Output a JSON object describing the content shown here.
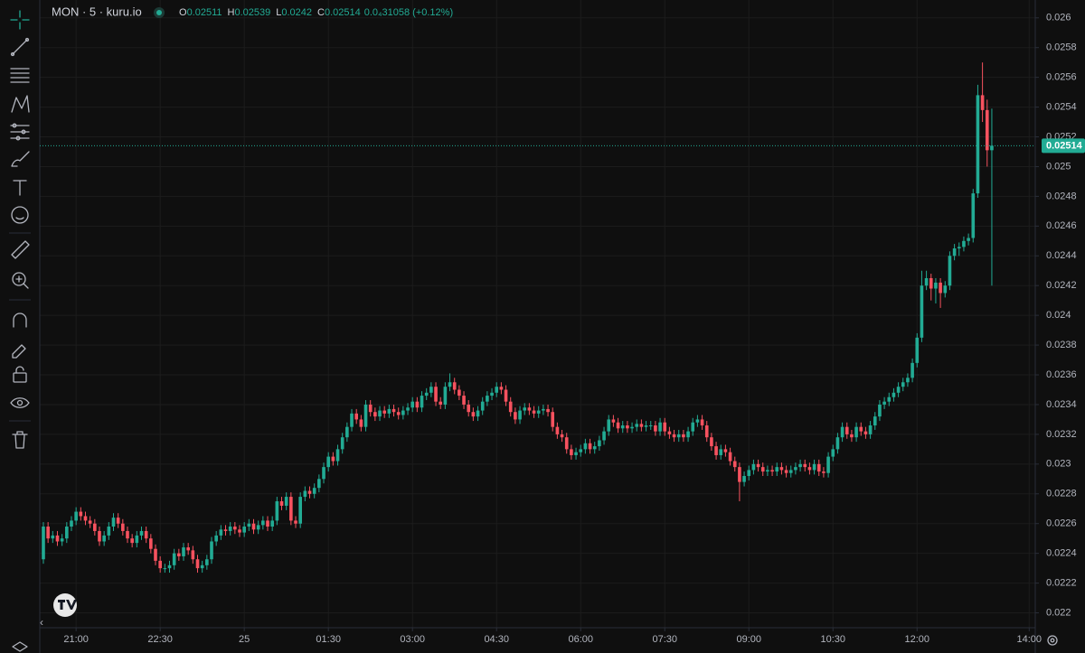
{
  "chart_data": {
    "type": "candlestick",
    "symbol": "MON · 5 · kuru.io",
    "ohlc_legend": [
      {
        "label": "O",
        "value": 0.02511
      },
      {
        "label": "H",
        "value": 0.02539
      },
      {
        "label": "L",
        "value": 0.0242
      },
      {
        "label": "C",
        "value": 0.02514
      }
    ],
    "change": "0.0₄31058 (+0.12%)",
    "last_price": 0.02514,
    "up_color": "#22ab94",
    "down_color": "#f7525f",
    "grid": true,
    "xlim": [
      -0.77,
      212.3
    ],
    "xticks": [
      {
        "value": 7,
        "label": "21:00"
      },
      {
        "value": 25,
        "label": "22:30"
      },
      {
        "value": 43,
        "label": "25"
      },
      {
        "value": 61,
        "label": "01:30"
      },
      {
        "value": 79,
        "label": "03:00"
      },
      {
        "value": 97,
        "label": "04:30"
      },
      {
        "value": 115,
        "label": "06:00"
      },
      {
        "value": 133,
        "label": "07:30"
      },
      {
        "value": 151,
        "label": "09:00"
      },
      {
        "value": 169,
        "label": "10:30"
      },
      {
        "value": 187,
        "label": "12:00"
      },
      {
        "value": 211,
        "label": "14:00"
      }
    ],
    "ylim": [
      0.0219,
      0.02612
    ],
    "yticks": [
      0.022,
      0.0222,
      0.0224,
      0.0226,
      0.0228,
      0.023,
      0.0232,
      0.0234,
      0.0236,
      0.0238,
      0.024,
      0.0242,
      0.0244,
      0.0246,
      0.0248,
      0.025,
      0.0252,
      0.0254,
      0.0256,
      0.0258,
      0.026
    ],
    "open": [
      0.02236,
      0.02258,
      0.0225,
      0.02252,
      0.02248,
      0.0225,
      0.02258,
      0.02262,
      0.02268,
      0.02265,
      0.02262,
      0.0226,
      0.02255,
      0.02248,
      0.02252,
      0.02258,
      0.02264,
      0.0226,
      0.02255,
      0.0225,
      0.02247,
      0.02252,
      0.02255,
      0.0225,
      0.02243,
      0.02235,
      0.0223,
      0.0223,
      0.02232,
      0.0224,
      0.02238,
      0.02244,
      0.02242,
      0.02236,
      0.0223,
      0.02232,
      0.02236,
      0.02248,
      0.02252,
      0.02256,
      0.02255,
      0.02258,
      0.02256,
      0.02254,
      0.02258,
      0.0226,
      0.02256,
      0.02259,
      0.02262,
      0.02258,
      0.02262,
      0.02275,
      0.02272,
      0.02278,
      0.02262,
      0.0226,
      0.02278,
      0.02282,
      0.0228,
      0.02284,
      0.0229,
      0.02298,
      0.02305,
      0.02302,
      0.0231,
      0.02318,
      0.02325,
      0.02334,
      0.0233,
      0.02325,
      0.0234,
      0.02335,
      0.02332,
      0.02336,
      0.02334,
      0.02337,
      0.02335,
      0.02333,
      0.02336,
      0.02338,
      0.02342,
      0.02338,
      0.02346,
      0.02348,
      0.02352,
      0.02342,
      0.0234,
      0.02352,
      0.02355,
      0.0235,
      0.02346,
      0.0234,
      0.02335,
      0.02332,
      0.02336,
      0.02342,
      0.02346,
      0.02348,
      0.02352,
      0.0235,
      0.02342,
      0.02335,
      0.0233,
      0.02336,
      0.02338,
      0.02336,
      0.02334,
      0.02336,
      0.02337,
      0.02335,
      0.02325,
      0.0232,
      0.02318,
      0.0231,
      0.02306,
      0.02308,
      0.0231,
      0.02314,
      0.0231,
      0.02312,
      0.02316,
      0.02322,
      0.0233,
      0.02328,
      0.02324,
      0.02326,
      0.02324,
      0.02325,
      0.02327,
      0.02325,
      0.02326,
      0.02326,
      0.02322,
      0.02328,
      0.02322,
      0.0232,
      0.02318,
      0.0232,
      0.02318,
      0.02322,
      0.02328,
      0.0233,
      0.02326,
      0.02318,
      0.02312,
      0.02306,
      0.0231,
      0.02308,
      0.02302,
      0.02298,
      0.02288,
      0.02292,
      0.02296,
      0.023,
      0.02298,
      0.02295,
      0.02296,
      0.02295,
      0.02298,
      0.02296,
      0.02294,
      0.02296,
      0.02298,
      0.023,
      0.02298,
      0.02296,
      0.023,
      0.02295,
      0.02294,
      0.02305,
      0.0231,
      0.02318,
      0.02325,
      0.0232,
      0.02318,
      0.02325,
      0.02322,
      0.0232,
      0.02326,
      0.02332,
      0.0234,
      0.02342,
      0.02345,
      0.02348,
      0.02352,
      0.02355,
      0.02358,
      0.02368,
      0.02385,
      0.0242,
      0.02425,
      0.02418,
      0.02422,
      0.02415,
      0.0242,
      0.0244,
      0.02445,
      0.02446,
      0.0245,
      0.02452,
      0.02482,
      0.02548,
      0.02538,
      0.02511
    ],
    "high": [
      0.02261,
      0.02261,
      0.02255,
      0.02255,
      0.02253,
      0.02261,
      0.02265,
      0.02271,
      0.02271,
      0.02268,
      0.02265,
      0.02263,
      0.02258,
      0.02255,
      0.02261,
      0.02267,
      0.02267,
      0.02263,
      0.02258,
      0.02253,
      0.02255,
      0.02258,
      0.02258,
      0.02253,
      0.02246,
      0.02238,
      0.02233,
      0.02235,
      0.02243,
      0.02243,
      0.02247,
      0.02247,
      0.02245,
      0.02239,
      0.02235,
      0.02239,
      0.02251,
      0.02255,
      0.02259,
      0.02259,
      0.02261,
      0.02261,
      0.02259,
      0.02261,
      0.02263,
      0.02263,
      0.02262,
      0.02265,
      0.02265,
      0.02265,
      0.02278,
      0.02278,
      0.02281,
      0.02281,
      0.02265,
      0.02281,
      0.02285,
      0.02285,
      0.02287,
      0.02293,
      0.02301,
      0.02308,
      0.02308,
      0.02313,
      0.02321,
      0.02328,
      0.02337,
      0.02337,
      0.02333,
      0.02343,
      0.02343,
      0.02338,
      0.02339,
      0.02339,
      0.0234,
      0.0234,
      0.02338,
      0.02339,
      0.02341,
      0.02345,
      0.02345,
      0.02349,
      0.02351,
      0.02355,
      0.02355,
      0.02345,
      0.02355,
      0.02361,
      0.02358,
      0.02353,
      0.02349,
      0.02343,
      0.02338,
      0.02339,
      0.02345,
      0.02349,
      0.02351,
      0.02355,
      0.02355,
      0.02353,
      0.02345,
      0.02338,
      0.02339,
      0.02341,
      0.02341,
      0.02339,
      0.02339,
      0.0234,
      0.0234,
      0.02338,
      0.02328,
      0.02323,
      0.02321,
      0.02313,
      0.02311,
      0.02313,
      0.02317,
      0.02317,
      0.02315,
      0.02319,
      0.02325,
      0.02333,
      0.02333,
      0.02331,
      0.02329,
      0.02329,
      0.02328,
      0.0233,
      0.0233,
      0.02329,
      0.02329,
      0.02329,
      0.02331,
      0.02331,
      0.02325,
      0.02323,
      0.02323,
      0.02323,
      0.02325,
      0.02331,
      0.02333,
      0.02333,
      0.02329,
      0.02321,
      0.02315,
      0.02313,
      0.02313,
      0.02311,
      0.02305,
      0.02301,
      0.02295,
      0.02299,
      0.02303,
      0.02303,
      0.02301,
      0.02299,
      0.02299,
      0.02301,
      0.02301,
      0.02299,
      0.02299,
      0.02301,
      0.02303,
      0.02303,
      0.02301,
      0.02303,
      0.02303,
      0.02298,
      0.02308,
      0.02313,
      0.02321,
      0.02328,
      0.02328,
      0.02323,
      0.02328,
      0.02328,
      0.02325,
      0.02329,
      0.02335,
      0.02343,
      0.02345,
      0.02348,
      0.02351,
      0.02355,
      0.02358,
      0.02361,
      0.02371,
      0.02388,
      0.0243,
      0.0243,
      0.02428,
      0.02425,
      0.02425,
      0.02423,
      0.02443,
      0.02448,
      0.02449,
      0.02453,
      0.02455,
      0.02485,
      0.02555,
      0.0257,
      0.02545,
      0.02539
    ],
    "low": [
      0.02233,
      0.02247,
      0.02247,
      0.02245,
      0.02245,
      0.02247,
      0.02255,
      0.02259,
      0.02262,
      0.02259,
      0.02257,
      0.02252,
      0.02245,
      0.02245,
      0.02249,
      0.02255,
      0.02257,
      0.02252,
      0.02247,
      0.02244,
      0.02244,
      0.02249,
      0.02247,
      0.0224,
      0.02232,
      0.02227,
      0.02227,
      0.02227,
      0.02229,
      0.02235,
      0.02235,
      0.02239,
      0.02233,
      0.02227,
      0.02227,
      0.02229,
      0.02233,
      0.02245,
      0.02249,
      0.02252,
      0.02252,
      0.02253,
      0.02251,
      0.02251,
      0.02255,
      0.02253,
      0.02253,
      0.02256,
      0.02255,
      0.02255,
      0.02259,
      0.02269,
      0.02269,
      0.02259,
      0.02257,
      0.02257,
      0.02275,
      0.02277,
      0.02277,
      0.02281,
      0.02287,
      0.02295,
      0.02299,
      0.02299,
      0.02307,
      0.02315,
      0.02322,
      0.02327,
      0.02322,
      0.02322,
      0.02332,
      0.02329,
      0.02329,
      0.02331,
      0.02331,
      0.02332,
      0.0233,
      0.0233,
      0.02333,
      0.02335,
      0.02335,
      0.02335,
      0.02343,
      0.02345,
      0.02339,
      0.02337,
      0.02337,
      0.02349,
      0.02347,
      0.02343,
      0.02337,
      0.02332,
      0.02329,
      0.02329,
      0.02333,
      0.02339,
      0.02343,
      0.02345,
      0.02347,
      0.02339,
      0.02332,
      0.02327,
      0.02327,
      0.02333,
      0.02333,
      0.02331,
      0.02331,
      0.02333,
      0.02332,
      0.02322,
      0.02317,
      0.02315,
      0.02307,
      0.02303,
      0.02303,
      0.02305,
      0.02307,
      0.02307,
      0.02307,
      0.02309,
      0.02313,
      0.02319,
      0.02325,
      0.02321,
      0.02321,
      0.02321,
      0.02321,
      0.02322,
      0.02322,
      0.02322,
      0.02323,
      0.02319,
      0.02319,
      0.02319,
      0.02317,
      0.02315,
      0.02315,
      0.02315,
      0.02315,
      0.02319,
      0.02325,
      0.02323,
      0.02315,
      0.02309,
      0.02303,
      0.02303,
      0.02305,
      0.02299,
      0.02295,
      0.02275,
      0.02285,
      0.02289,
      0.02293,
      0.02295,
      0.02292,
      0.02292,
      0.02292,
      0.02292,
      0.02293,
      0.02291,
      0.02291,
      0.02293,
      0.02295,
      0.02295,
      0.02293,
      0.02293,
      0.02292,
      0.02291,
      0.02291,
      0.02302,
      0.02307,
      0.02315,
      0.02317,
      0.02315,
      0.02315,
      0.02319,
      0.02317,
      0.02317,
      0.02323,
      0.02329,
      0.02337,
      0.02339,
      0.02342,
      0.02345,
      0.02349,
      0.02352,
      0.02355,
      0.02365,
      0.02382,
      0.02417,
      0.0241,
      0.02408,
      0.02405,
      0.02412,
      0.02417,
      0.02437,
      0.0244,
      0.02443,
      0.02447,
      0.02449,
      0.02479,
      0.0253,
      0.025,
      0.0242
    ],
    "close": [
      0.02258,
      0.0225,
      0.02252,
      0.02248,
      0.0225,
      0.02258,
      0.02262,
      0.02268,
      0.02265,
      0.02262,
      0.0226,
      0.02255,
      0.02248,
      0.02252,
      0.02258,
      0.02264,
      0.0226,
      0.02255,
      0.0225,
      0.02247,
      0.02252,
      0.02255,
      0.0225,
      0.02243,
      0.02235,
      0.0223,
      0.0223,
      0.02232,
      0.0224,
      0.02238,
      0.02244,
      0.02242,
      0.02236,
      0.0223,
      0.02232,
      0.02236,
      0.02248,
      0.02252,
      0.02256,
      0.02255,
      0.02258,
      0.02256,
      0.02254,
      0.02258,
      0.0226,
      0.02256,
      0.02259,
      0.02262,
      0.02258,
      0.02262,
      0.02275,
      0.02272,
      0.02278,
      0.02262,
      0.0226,
      0.02278,
      0.02282,
      0.0228,
      0.02284,
      0.0229,
      0.02298,
      0.02305,
      0.02302,
      0.0231,
      0.02318,
      0.02325,
      0.02334,
      0.0233,
      0.02325,
      0.0234,
      0.02335,
      0.02332,
      0.02336,
      0.02334,
      0.02337,
      0.02335,
      0.02333,
      0.02336,
      0.02338,
      0.02342,
      0.02338,
      0.02346,
      0.02348,
      0.02352,
      0.02342,
      0.0234,
      0.02352,
      0.02355,
      0.0235,
      0.02346,
      0.0234,
      0.02335,
      0.02332,
      0.02336,
      0.02342,
      0.02346,
      0.02348,
      0.02352,
      0.0235,
      0.02342,
      0.02335,
      0.0233,
      0.02336,
      0.02338,
      0.02336,
      0.02334,
      0.02336,
      0.02337,
      0.02335,
      0.02325,
      0.0232,
      0.02318,
      0.0231,
      0.02306,
      0.02308,
      0.0231,
      0.02314,
      0.0231,
      0.02312,
      0.02316,
      0.02322,
      0.0233,
      0.02328,
      0.02324,
      0.02326,
      0.02324,
      0.02325,
      0.02327,
      0.02325,
      0.02326,
      0.02326,
      0.02322,
      0.02328,
      0.02322,
      0.0232,
      0.02318,
      0.0232,
      0.02318,
      0.02322,
      0.02328,
      0.0233,
      0.02326,
      0.02318,
      0.02312,
      0.02306,
      0.0231,
      0.02308,
      0.02302,
      0.02298,
      0.02288,
      0.02292,
      0.02296,
      0.023,
      0.02298,
      0.02295,
      0.02296,
      0.02295,
      0.02298,
      0.02296,
      0.02294,
      0.02296,
      0.02298,
      0.023,
      0.02298,
      0.02296,
      0.023,
      0.02295,
      0.02294,
      0.02305,
      0.0231,
      0.02318,
      0.02325,
      0.0232,
      0.02318,
      0.02325,
      0.02322,
      0.0232,
      0.02326,
      0.02332,
      0.0234,
      0.02342,
      0.02345,
      0.02348,
      0.02352,
      0.02355,
      0.02358,
      0.02368,
      0.02385,
      0.0242,
      0.02425,
      0.02418,
      0.02422,
      0.02415,
      0.0242,
      0.0244,
      0.02445,
      0.02446,
      0.0245,
      0.02452,
      0.02482,
      0.02548,
      0.02538,
      0.02511,
      0.02514
    ]
  }
}
